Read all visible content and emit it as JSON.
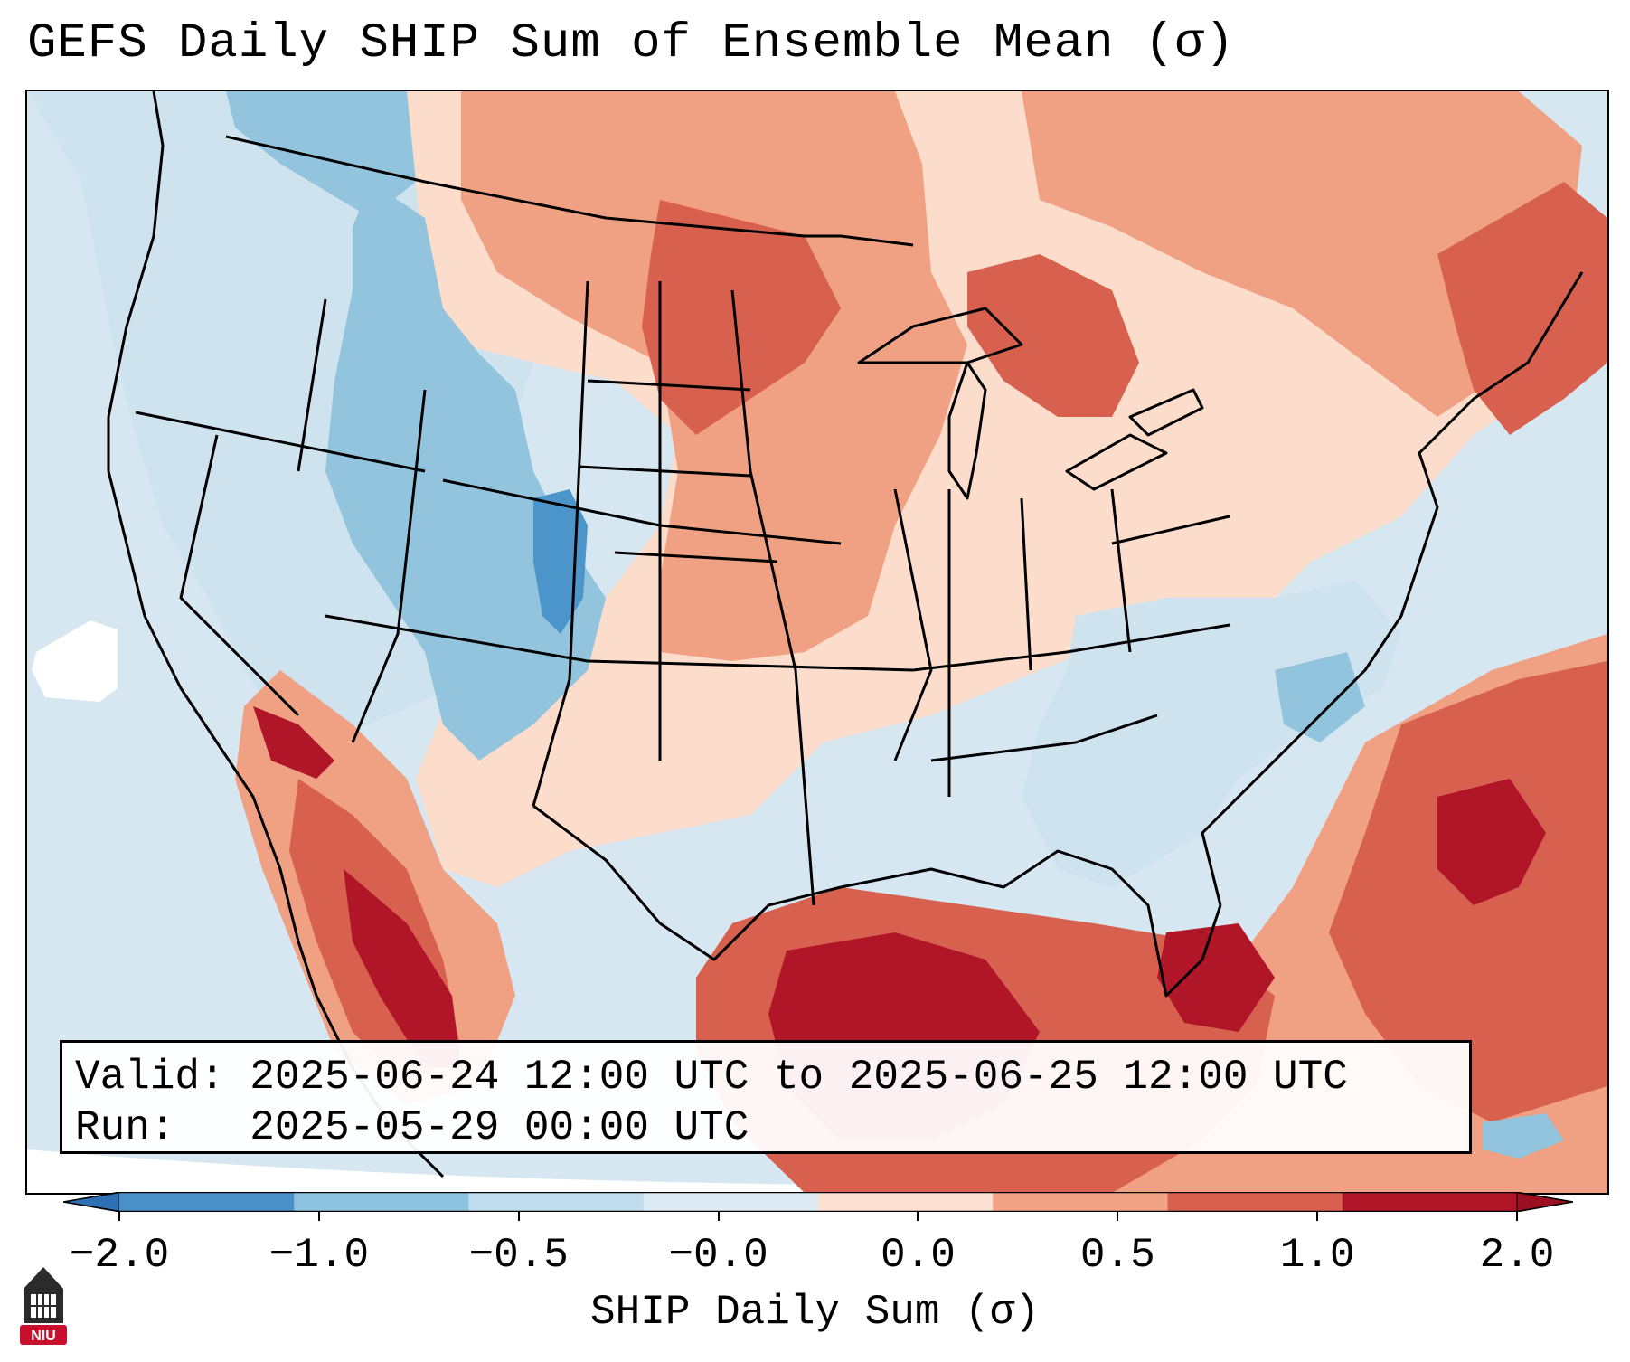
{
  "title": "GEFS Daily SHIP Sum of Ensemble Mean (σ)",
  "info": {
    "valid_label": "Valid:",
    "valid_value": "2025-06-24 12:00 UTC to 2025-06-25 12:00 UTC",
    "run_label": "Run:",
    "run_value": "2025-05-29 00:00 UTC"
  },
  "colorbar": {
    "label": "SHIP Daily Sum (σ)",
    "ticks": [
      "−2.0",
      "−1.0",
      "−0.5",
      "−0.0",
      "0.0",
      "0.5",
      "1.0",
      "2.0"
    ],
    "colors": [
      "#4a90c8",
      "#8dc3de",
      "#c0dced",
      "#dcebf4",
      "#fde0d2",
      "#f2a285",
      "#d8604f",
      "#b11528"
    ],
    "extend_low_color": "#2f6fb3",
    "extend_high_color": "#9c0e22"
  },
  "logo": {
    "text": "NIU"
  },
  "palette": {
    "ocean_neutral": "#d6e7f1",
    "light_pos": "#fcdccb",
    "mid_pos": "#f0a184",
    "high_pos": "#d7604e",
    "extreme_pos": "#b01528",
    "light_neg": "#cfe3ef",
    "mid_neg": "#92c4de",
    "strong_neg": "#4b95ca"
  }
}
